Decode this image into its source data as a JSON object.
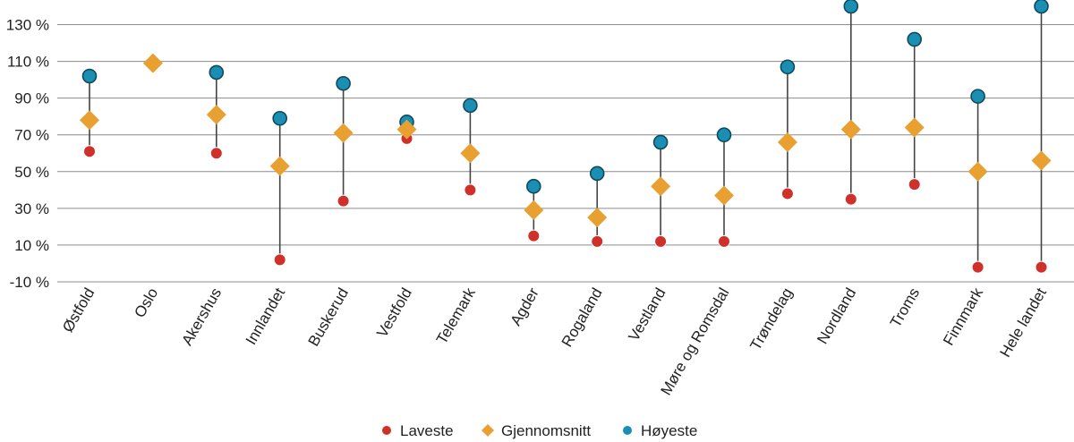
{
  "chart_data": {
    "type": "scatter",
    "subtype": "dot-range",
    "categories": [
      "Østfold",
      "Oslo",
      "Akershus",
      "Innlandet",
      "Buskerud",
      "Vestfold",
      "Telemark",
      "Agder",
      "Rogaland",
      "Vestland",
      "Møre og Romsdal",
      "Trøndelag",
      "Nordland",
      "Troms",
      "Finnmark",
      "Hele landet"
    ],
    "series": [
      {
        "name": "Laveste",
        "color": "#d0302a",
        "marker": "circle",
        "values": [
          61,
          null,
          60,
          2,
          34,
          68,
          40,
          15,
          12,
          12,
          12,
          38,
          35,
          43,
          -2,
          -2
        ]
      },
      {
        "name": "Gjennomsnitt",
        "color": "#e8a030",
        "marker": "diamond",
        "values": [
          78,
          109,
          81,
          53,
          71,
          73,
          60,
          29,
          25,
          42,
          37,
          66,
          73,
          74,
          50,
          56
        ]
      },
      {
        "name": "Høyeste",
        "color": "#1b8fb3",
        "marker": "circle",
        "values": [
          102,
          null,
          104,
          79,
          98,
          77,
          86,
          42,
          49,
          66,
          70,
          107,
          140,
          122,
          91,
          140
        ]
      }
    ],
    "ylim": [
      -10,
      140
    ],
    "yticks": [
      -10,
      10,
      30,
      50,
      70,
      90,
      110,
      130
    ],
    "ytick_labels": [
      "-10 %",
      "10 %",
      "30 %",
      "50 %",
      "70 %",
      "90 %",
      "110 %",
      "130 %"
    ],
    "grid": true,
    "legend_position": "bottom-center",
    "title": "",
    "xlabel": "",
    "ylabel": ""
  }
}
